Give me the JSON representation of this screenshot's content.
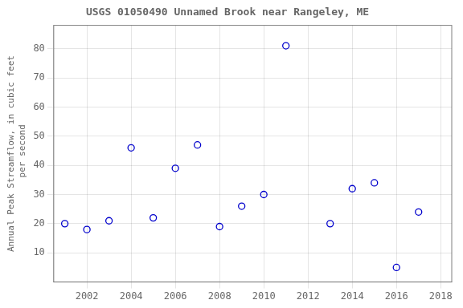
{
  "chart_data": {
    "type": "scatter",
    "title": "USGS 01050490 Unnamed Brook near Rangeley, ME",
    "ylabel": "Annual Peak Streamflow, in cubic feet\n per second",
    "x": [
      2001,
      2002,
      2003,
      2004,
      2005,
      2006,
      2007,
      2008,
      2009,
      2010,
      2011,
      2013,
      2014,
      2015,
      2016,
      2017
    ],
    "values": [
      20,
      18,
      21,
      46,
      22,
      39,
      47,
      19,
      26,
      30,
      81,
      20,
      32,
      34,
      5,
      24
    ],
    "color": "#0000cc",
    "marker": "circle",
    "xlim": [
      2000.5,
      2018.5
    ],
    "ylim": [
      0,
      88
    ],
    "xticks": [
      2002,
      2004,
      2006,
      2008,
      2010,
      2012,
      2014,
      2016,
      2018
    ],
    "yticks": [
      10,
      20,
      30,
      40,
      50,
      60,
      70,
      80
    ],
    "grid": true
  }
}
